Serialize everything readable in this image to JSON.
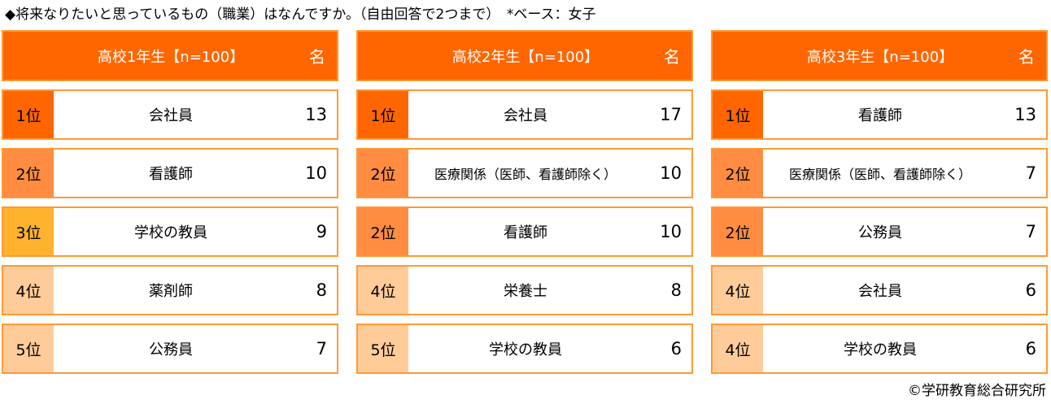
{
  "title": "◆将来なりたいと思っているもの（職業）はなんですか。（自由回答で2つまで）　*ベース：女子",
  "colors": {
    "header": "#FF6600",
    "border": "#FF9933",
    "rank1": "#FF6600",
    "rank2": "#FF8C40",
    "rank3": "#FFB22E",
    "rank4": "#FFCC99"
  },
  "chart_data": {
    "type": "table",
    "unit": "名",
    "panels": [
      {
        "header": "高校1年生【n=100】",
        "unit": "名",
        "rows": [
          {
            "rank": "1位",
            "job": "会社員",
            "value": 13
          },
          {
            "rank": "2位",
            "job": "看護師",
            "value": 10
          },
          {
            "rank": "3位",
            "job": "学校の教員",
            "value": 9
          },
          {
            "rank": "4位",
            "job": "薬剤師",
            "value": 8
          },
          {
            "rank": "5位",
            "job": "公務員",
            "value": 7
          }
        ]
      },
      {
        "header": "高校2年生【n=100】",
        "unit": "名",
        "rows": [
          {
            "rank": "1位",
            "job": "会社員",
            "value": 17
          },
          {
            "rank": "2位",
            "job": "医療関係（医師、看護師除く）",
            "value": 10
          },
          {
            "rank": "2位",
            "job": "看護師",
            "value": 10
          },
          {
            "rank": "4位",
            "job": "栄養士",
            "value": 8
          },
          {
            "rank": "5位",
            "job": "学校の教員",
            "value": 6
          }
        ]
      },
      {
        "header": "高校3年生【n=100】",
        "unit": "名",
        "rows": [
          {
            "rank": "1位",
            "job": "看護師",
            "value": 13
          },
          {
            "rank": "2位",
            "job": "医療関係（医師、看護師除く）",
            "value": 7
          },
          {
            "rank": "2位",
            "job": "公務員",
            "value": 7
          },
          {
            "rank": "4位",
            "job": "会社員",
            "value": 6
          },
          {
            "rank": "4位",
            "job": "学校の教員",
            "value": 6
          }
        ]
      }
    ]
  },
  "footer": "©学研教育総合研究所"
}
